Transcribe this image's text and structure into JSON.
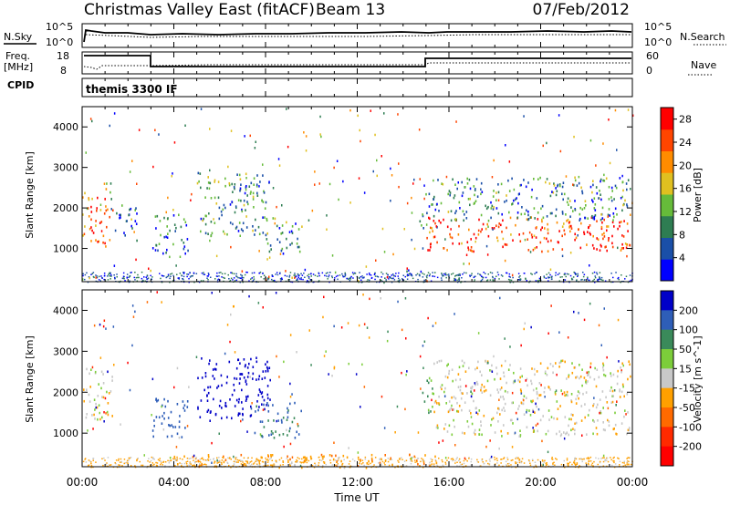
{
  "header": {
    "title": "Christmas Valley East (fitACF)",
    "beam": "Beam 13",
    "date": "07/Feb/2012"
  },
  "strips": {
    "nsky_label": "N.Sky",
    "nsearch_label": "N.Search",
    "freq_label_top": "Freq.",
    "freq_label_unit": "[MHz]",
    "nave_label": "Nave",
    "cpid_label": "CPID",
    "cpid_text": "themis 3300 IF",
    "noise_ticks_left": [
      "10^5",
      "10^0"
    ],
    "noise_ticks_right": [
      "10^5",
      "10^0"
    ],
    "freq_ticks_left": [
      "18",
      "8"
    ],
    "nave_ticks_right": [
      "60",
      "0"
    ]
  },
  "chart_data": [
    {
      "type": "heatmap",
      "name": "power-panel",
      "ylabel": "Slant Range [km]",
      "xlabel": "",
      "xlim_hours": [
        0,
        24
      ],
      "ylim_km": [
        180,
        4500
      ],
      "y_ticks": [
        1000,
        2000,
        3000,
        4000
      ],
      "colorbar": {
        "label": "Power [dB]",
        "ticks": [
          4,
          8,
          12,
          16,
          20,
          24,
          28
        ],
        "range": [
          0,
          30
        ],
        "colors": [
          "#0000ff",
          "#1a4fa8",
          "#2e7d52",
          "#66bb3a",
          "#e0c020",
          "#ff8c00",
          "#ff4500",
          "#ff0000"
        ]
      },
      "regions": [
        {
          "t0": 0.0,
          "t1": 1.1,
          "r0": 1000,
          "r1": 2400,
          "level": 0.75
        },
        {
          "t0": 1.0,
          "t1": 1.35,
          "r0": 1800,
          "r1": 2700,
          "level": 0.6
        },
        {
          "t0": 1.4,
          "t1": 2.4,
          "r0": 1200,
          "r1": 2100,
          "level": 0.15
        },
        {
          "t0": 3.0,
          "t1": 4.6,
          "r0": 900,
          "r1": 1900,
          "level": 0.25
        },
        {
          "t0": 5.0,
          "t1": 8.0,
          "r0": 1300,
          "r1": 2900,
          "level": 0.35
        },
        {
          "t0": 8.0,
          "t1": 9.6,
          "r0": 900,
          "r1": 1800,
          "level": 0.3
        },
        {
          "t0": 14.7,
          "t1": 15.5,
          "r0": 1500,
          "r1": 2400,
          "level": 0.3
        },
        {
          "t0": 15.0,
          "t1": 23.9,
          "r0": 950,
          "r1": 1800,
          "level": 0.85
        },
        {
          "t0": 15.3,
          "t1": 23.9,
          "r0": 1700,
          "r1": 2800,
          "level": 0.3
        }
      ]
    },
    {
      "type": "heatmap",
      "name": "velocity-panel",
      "ylabel": "Slant Range [km]",
      "xlabel": "Time UT",
      "xlim_hours": [
        0,
        24
      ],
      "ylim_km": [
        180,
        4500
      ],
      "y_ticks": [
        1000,
        2000,
        3000,
        4000
      ],
      "x_tick_labels": [
        "00:00",
        "04:00",
        "08:00",
        "12:00",
        "16:00",
        "20:00",
        "00:00"
      ],
      "colorbar": {
        "label": "Velocity [m s^-1]",
        "ticks": [
          "200",
          "100",
          "50",
          "15",
          "-15",
          "-50",
          "-100",
          "-200"
        ],
        "colors": [
          "#0000c8",
          "#2e5eb8",
          "#3a8a5a",
          "#7ccd3a",
          "#c8c8c8",
          "#ffa000",
          "#ff6a00",
          "#ff2a00",
          "#ff0000"
        ]
      },
      "regions": [
        {
          "t0": 0.0,
          "t1": 1.3,
          "r0": 1300,
          "r1": 2600,
          "vel": 0
        },
        {
          "t0": 3.0,
          "t1": 4.6,
          "r0": 900,
          "r1": 1900,
          "vel": 120
        },
        {
          "t0": 5.0,
          "t1": 8.2,
          "r0": 1300,
          "r1": 2900,
          "vel": 190
        },
        {
          "t0": 7.5,
          "t1": 9.6,
          "r0": 900,
          "r1": 1800,
          "vel": 80
        },
        {
          "t0": 14.7,
          "t1": 15.3,
          "r0": 1500,
          "r1": 2400,
          "vel": 40
        },
        {
          "t0": 15.3,
          "t1": 23.9,
          "r0": 950,
          "r1": 2800,
          "vel": 0
        },
        {
          "t0": 4.0,
          "t1": 15.5,
          "r0": 180,
          "r1": 500,
          "vel": -40
        }
      ]
    }
  ]
}
